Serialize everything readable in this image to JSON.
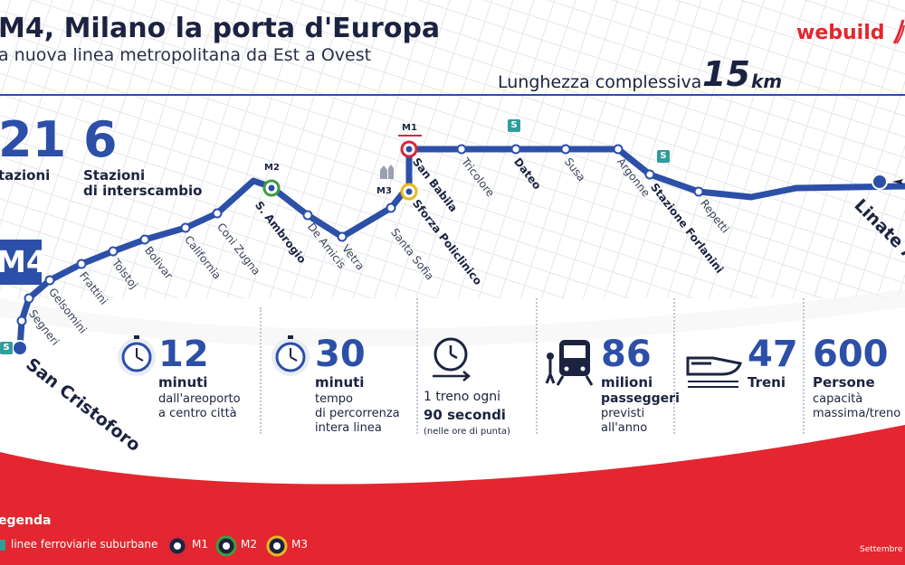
{
  "header": {
    "title": "M4, Milano la porta d'Europa",
    "subtitle": "a nuova linea metropolitana da Est a Ovest",
    "brand": "webuild",
    "length_label": "Lunghezza complessiva",
    "length_value": "15",
    "length_unit": "km"
  },
  "stats": {
    "stations_value": "21",
    "stations_label": "tazioni",
    "interchange_value": "6",
    "interchange_label_1": "Stazioni",
    "interchange_label_2": "di interscambio",
    "line_badge": "M4"
  },
  "line_tags": {
    "m1": "M1",
    "m2": "M2",
    "m3": "M3",
    "suburban": "S"
  },
  "stations": [
    {
      "name": "Linate Aeroporto",
      "kind": "terminal"
    },
    {
      "name": "Repetti",
      "kind": "regular"
    },
    {
      "name": "Stazione Forlanini",
      "kind": "interchange"
    },
    {
      "name": "Argonne",
      "kind": "regular"
    },
    {
      "name": "Susa",
      "kind": "regular"
    },
    {
      "name": "Dateo",
      "kind": "interchange"
    },
    {
      "name": "Tricolore",
      "kind": "regular"
    },
    {
      "name": "San Babila",
      "kind": "interchange"
    },
    {
      "name": "Sforza Policlinico",
      "kind": "interchange"
    },
    {
      "name": "Santa Sofia",
      "kind": "regular"
    },
    {
      "name": "Vetra",
      "kind": "regular"
    },
    {
      "name": "De Amicis",
      "kind": "regular"
    },
    {
      "name": "S. Ambrogio",
      "kind": "interchange"
    },
    {
      "name": "Coni Zugna",
      "kind": "regular"
    },
    {
      "name": "California",
      "kind": "regular"
    },
    {
      "name": "Bolivar",
      "kind": "regular"
    },
    {
      "name": "Tolstoj",
      "kind": "regular"
    },
    {
      "name": "Frattini",
      "kind": "regular"
    },
    {
      "name": "Gelsomini",
      "kind": "regular"
    },
    {
      "name": "Segneri",
      "kind": "regular"
    },
    {
      "name": "San Cristoforo",
      "kind": "terminal"
    }
  ],
  "metrics": {
    "m1": {
      "value": "12",
      "unit": "minuti",
      "desc_1": "dall'areoporto",
      "desc_2": "a centro città",
      "icon": "stopwatch-icon"
    },
    "m2": {
      "value": "30",
      "unit": "minuti",
      "desc_1": "tempo",
      "desc_2": "di percorrenza",
      "desc_3": "intera linea",
      "icon": "stopwatch-icon"
    },
    "m3": {
      "desc_1": "1 treno ogni",
      "desc_2": "90 secondi",
      "note": "(nelle ore di punta)",
      "icon": "clock-arrow-icon"
    },
    "m4": {
      "value": "86",
      "unit": "milioni",
      "desc_1": "passeggeri",
      "desc_2": "previsti",
      "desc_3": "all'anno",
      "icon": "passenger-train-icon"
    },
    "m5": {
      "value": "47",
      "unit": "Treni",
      "icon": "high-speed-train-icon"
    },
    "m6": {
      "value": "600",
      "unit": "Persone",
      "desc_1": "capacità",
      "desc_2": "massima/treno",
      "icon": "people-icon"
    }
  },
  "legend": {
    "title": "egenda",
    "suburban": "linee ferroviarie suburbane",
    "m1": "M1",
    "m2": "M2",
    "m3": "M3",
    "date": "Settembre"
  },
  "colors": {
    "line_blue": "#2c4fa8",
    "accent_red": "#e3262f",
    "suburban_teal": "#2e9e9a",
    "m1_red": "#d62839",
    "m2_green": "#3e9d3e",
    "m3_yellow": "#e8b81e"
  }
}
